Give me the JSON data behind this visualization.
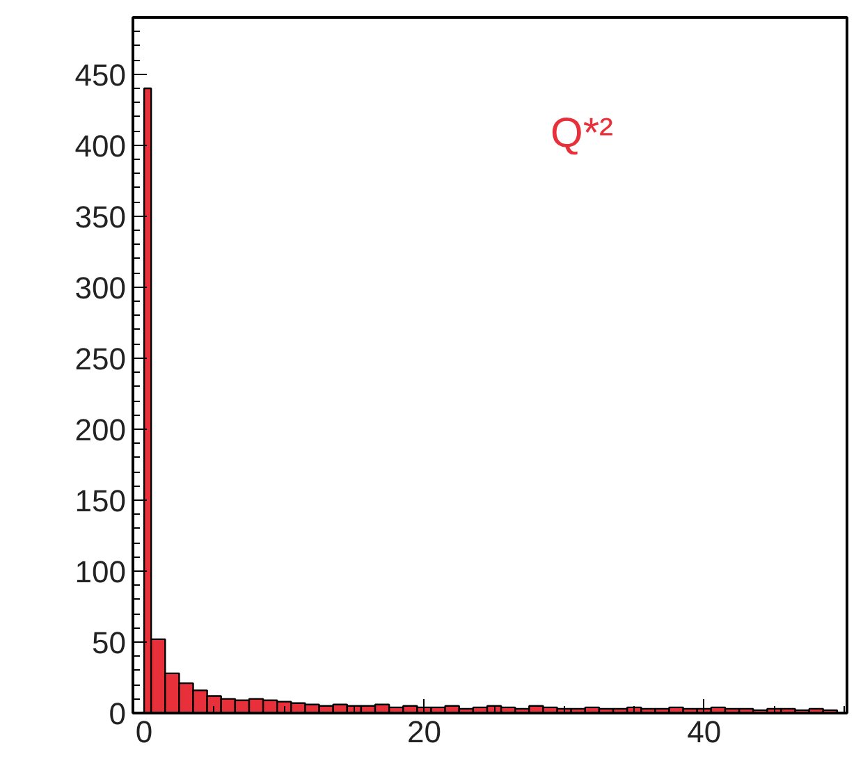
{
  "chart_data": {
    "type": "histogram",
    "bins": [
      0,
      0.5,
      1.5,
      2.5,
      3.5,
      4.5,
      5.5,
      6.5,
      7.5,
      8.5,
      9.5,
      10.5,
      11.5,
      12.5,
      13.5,
      14.5,
      15.5,
      16.5,
      17.5,
      18.5,
      19.5,
      20.5,
      21.5,
      22.5,
      23.5,
      24.5,
      25.5,
      26.5,
      27.5,
      28.5,
      29.5,
      30.5,
      31.5,
      32.5,
      33.5,
      34.5,
      35.5,
      36.5,
      37.5,
      38.5,
      39.5,
      40.5,
      41.5,
      42.5,
      43.5,
      44.5,
      45.5,
      46.5,
      47.5,
      48.5,
      49.5
    ],
    "values": [
      440,
      52,
      28,
      21,
      16,
      12,
      10,
      9,
      10,
      9,
      8,
      7,
      6,
      5,
      6,
      5,
      5,
      6,
      4,
      5,
      4,
      4,
      5,
      3,
      4,
      5,
      4,
      3,
      5,
      4,
      3,
      3,
      4,
      3,
      3,
      4,
      3,
      3,
      4,
      3,
      3,
      4,
      3,
      3,
      2,
      3,
      3,
      2,
      3,
      2
    ],
    "color": "#e8303a",
    "xlim": [
      -0.8,
      50.2
    ],
    "ylim": [
      0,
      490
    ],
    "xticks": [
      0,
      20,
      40
    ],
    "yticks": [
      0,
      50,
      100,
      150,
      200,
      250,
      300,
      350,
      400,
      450
    ],
    "grid": false,
    "annotations": [
      "Q*²"
    ]
  }
}
